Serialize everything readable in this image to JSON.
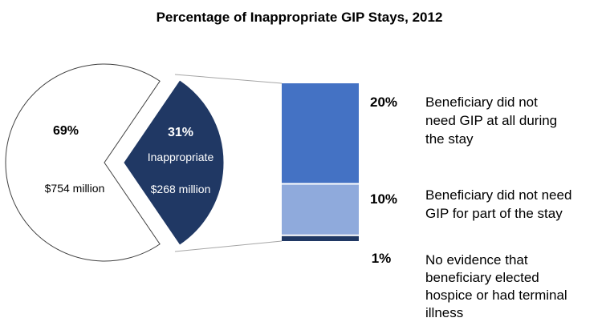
{
  "chart_data": {
    "type": "pie",
    "title": "Percentage of Inappropriate GIP Stays, 2012",
    "pie": {
      "slices": [
        {
          "percent_label": "69%",
          "value": 69,
          "amount": "$754 million",
          "color": "#ffffff"
        },
        {
          "percent_label": "31%",
          "name": "Inappropriate",
          "value": 31,
          "amount": "$268 million",
          "color": "#203864"
        }
      ]
    },
    "breakdown": {
      "type": "stacked-bar",
      "segments": [
        {
          "percent_label": "20%",
          "value": 20,
          "description": [
            "Beneficiary did not",
            "need GIP at all during",
            "the stay"
          ],
          "color": "#4472c4"
        },
        {
          "percent_label": "10%",
          "value": 10,
          "description": [
            "Beneficiary did not need",
            "GIP for part of the stay"
          ],
          "color": "#8faadc"
        },
        {
          "percent_label": "1%",
          "value": 1,
          "description": [
            "No evidence that",
            "beneficiary elected",
            "hospice or had terminal",
            "illness"
          ],
          "color": "#203864"
        }
      ]
    },
    "colors": {
      "outline": "#404040",
      "connector": "#a6a6a6",
      "text_on_dark": "#ffffff"
    }
  }
}
